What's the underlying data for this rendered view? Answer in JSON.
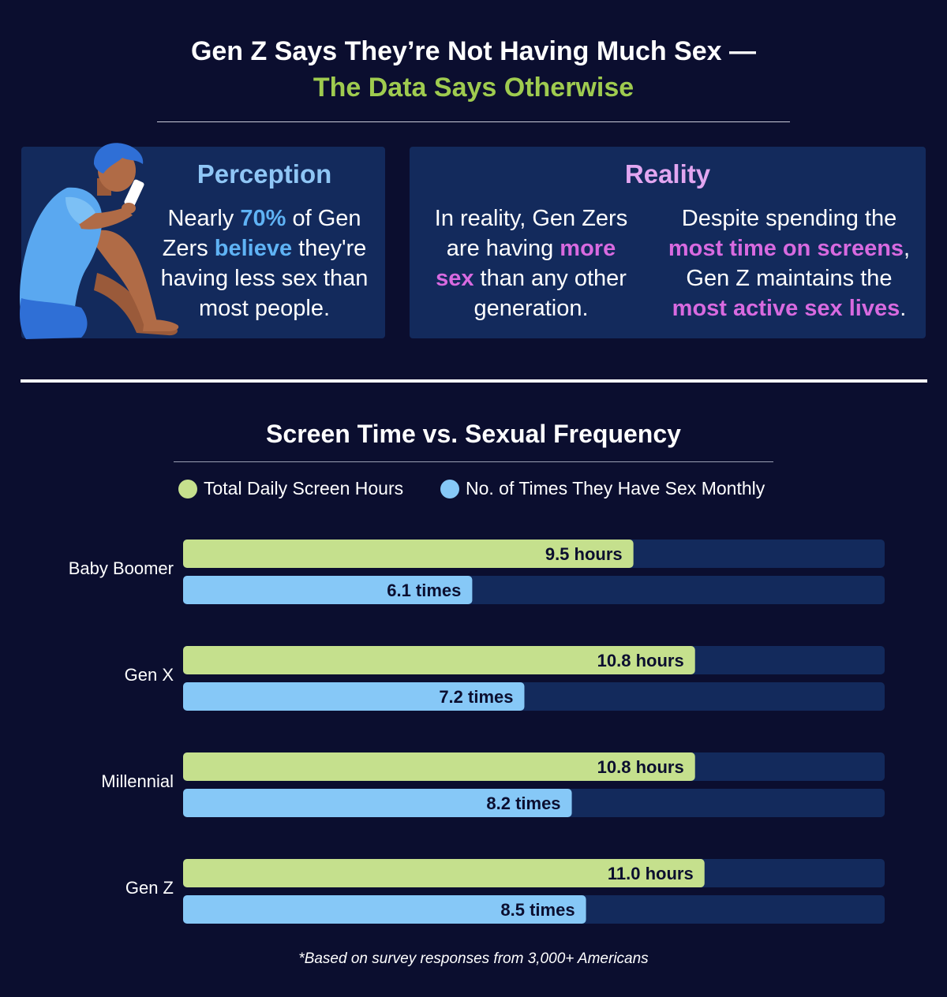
{
  "header": {
    "title_line1": "Gen Z Says They’re Not Having Much Sex —",
    "title_line2": "The Data Says Otherwise"
  },
  "perception": {
    "heading": "Perception",
    "line1_a": "Nearly ",
    "line1_b": "70%",
    "line1_c": " of Gen",
    "line2_a": "Zers ",
    "line2_b": "believe",
    "line2_c": " they're",
    "line3": "having less sex than",
    "line4": "most people."
  },
  "reality": {
    "heading": "Reality",
    "col1_line1": "In reality, Gen Zers",
    "col1_line2_a": "are having ",
    "col1_line2_b": "more",
    "col1_line3_a": "sex",
    "col1_line3_b": " than any other",
    "col1_line4": "generation.",
    "col2_line1": "Despite spending the",
    "col2_line2_a": "most time on screens",
    "col2_line2_b": ",",
    "col2_line3": "Gen Z maintains the",
    "col2_line4_a": "most active sex lives",
    "col2_line4_b": "."
  },
  "colors": {
    "background": "#0b0e2f",
    "panel": "#132a5c",
    "track": "#132a5c",
    "screen_hours": "#c5e08d",
    "sex_monthly": "#86c8f7",
    "accent_green": "#9fcb4f",
    "accent_blue": "#5fb3f5",
    "accent_pink": "#d86ae0"
  },
  "chart_data": {
    "type": "bar",
    "title": "Screen Time vs. Sexual Frequency",
    "orientation": "horizontal",
    "categories": [
      "Baby Boomer",
      "Gen X",
      "Millennial",
      "Gen Z"
    ],
    "xlim": [
      0,
      14.8
    ],
    "grid": false,
    "legend_position": "top",
    "series": [
      {
        "name": "Total Daily Screen Hours",
        "values": [
          9.5,
          10.8,
          10.8,
          11.0
        ],
        "labels": [
          "9.5 hours",
          "10.8 hours",
          "10.8 hours",
          "11.0 hours"
        ]
      },
      {
        "name": "No. of Times They Have Sex Monthly",
        "values": [
          6.1,
          7.2,
          8.2,
          8.5
        ],
        "labels": [
          "6.1 times",
          "7.2 times",
          "8.2 times",
          "8.5 times"
        ]
      }
    ]
  },
  "footnote": "*Based on survey responses from 3,000+ Americans"
}
